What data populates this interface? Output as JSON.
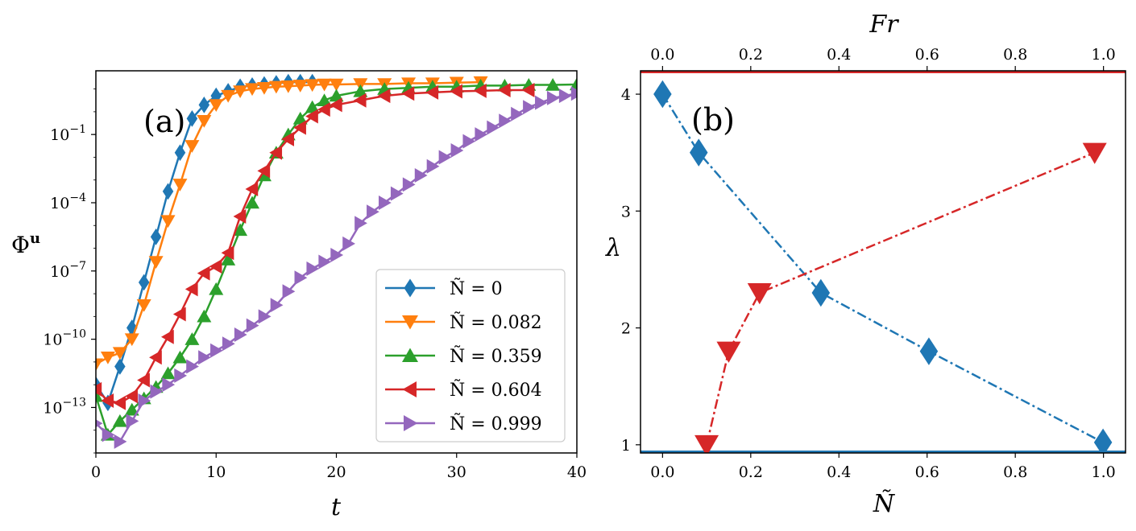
{
  "chart_data": [
    {
      "type": "line",
      "panel_label": "(a)",
      "xlabel": "t",
      "ylabel": "Φ",
      "ylabel_sup": "u",
      "xlim": [
        0,
        40
      ],
      "ylim_log10": [
        -15,
        1.8
      ],
      "yscale": "log",
      "xticks": [
        "0",
        "10",
        "20",
        "30",
        "40"
      ],
      "yticks": [
        {
          "base": "10",
          "exp": "−1",
          "log10": -1
        },
        {
          "base": "10",
          "exp": "−4",
          "log10": -4
        },
        {
          "base": "10",
          "exp": "−7",
          "log10": -7
        },
        {
          "base": "10",
          "exp": "−10",
          "log10": -10
        },
        {
          "base": "10",
          "exp": "−13",
          "log10": -13
        }
      ],
      "legend_position": "lower-right",
      "series": [
        {
          "name": "Ñ = 0",
          "color": "#1f77b4",
          "marker": "diamond",
          "points": [
            [
              0,
              -12
            ],
            [
              1,
              -12.8
            ],
            [
              2,
              -11.2
            ],
            [
              3,
              -9.5
            ],
            [
              4,
              -7.5
            ],
            [
              5,
              -5.5
            ],
            [
              6,
              -3.5
            ],
            [
              7,
              -1.8
            ],
            [
              8,
              -0.3
            ],
            [
              9,
              0.3
            ],
            [
              10,
              0.7
            ],
            [
              11,
              0.9
            ],
            [
              12,
              1.1
            ],
            [
              13,
              1.15
            ],
            [
              14,
              1.2
            ],
            [
              15,
              1.25
            ],
            [
              16,
              1.3
            ],
            [
              17,
              1.3
            ],
            [
              18,
              1.3
            ]
          ],
          "label": "Ñ = 0"
        },
        {
          "name": "Ñ = 0.082",
          "color": "#ff7f0e",
          "marker": "triangle-down",
          "points": [
            [
              0,
              -11.1
            ],
            [
              1,
              -10.8
            ],
            [
              2,
              -10.6
            ],
            [
              3,
              -10
            ],
            [
              4,
              -8.5
            ],
            [
              5,
              -6.6
            ],
            [
              6,
              -4.8
            ],
            [
              7,
              -3.2
            ],
            [
              8,
              -1.5
            ],
            [
              9,
              -0.4
            ],
            [
              10,
              0.3
            ],
            [
              11,
              0.7
            ],
            [
              12,
              0.9
            ],
            [
              13,
              1.0
            ],
            [
              14,
              1.05
            ],
            [
              15,
              1.1
            ],
            [
              16,
              1.12
            ],
            [
              17,
              1.15
            ],
            [
              18,
              1.18
            ],
            [
              19,
              1.2
            ],
            [
              20,
              1.2
            ],
            [
              22,
              1.22
            ],
            [
              24,
              1.22
            ],
            [
              26,
              1.25
            ],
            [
              28,
              1.25
            ],
            [
              30,
              1.28
            ],
            [
              32,
              1.3
            ]
          ],
          "label": "Ñ = 0.082"
        },
        {
          "name": "Ñ = 0.359",
          "color": "#2ca02c",
          "marker": "triangle-up",
          "points": [
            [
              0,
              -12.5
            ],
            [
              1,
              -14.2
            ],
            [
              2,
              -13.6
            ],
            [
              3,
              -13.1
            ],
            [
              4,
              -12.6
            ],
            [
              5,
              -12.1
            ],
            [
              6,
              -11.5
            ],
            [
              7,
              -10.8
            ],
            [
              8,
              -10
            ],
            [
              9,
              -9
            ],
            [
              10,
              -7.8
            ],
            [
              11,
              -6.5
            ],
            [
              12,
              -5.2
            ],
            [
              13,
              -4
            ],
            [
              14,
              -2.8
            ],
            [
              15,
              -1.8
            ],
            [
              16,
              -1
            ],
            [
              17,
              -0.3
            ],
            [
              18,
              0.2
            ],
            [
              19,
              0.5
            ],
            [
              20,
              0.7
            ],
            [
              22,
              0.9
            ],
            [
              24,
              1.0
            ],
            [
              26,
              1.05
            ],
            [
              28,
              1.1
            ],
            [
              30,
              1.1
            ],
            [
              32,
              1.15
            ],
            [
              34,
              1.15
            ],
            [
              36,
              1.18
            ],
            [
              38,
              1.18
            ],
            [
              40,
              1.2
            ]
          ],
          "label": "Ñ = 0.359"
        },
        {
          "name": "Ñ = 0.604",
          "color": "#d62728",
          "marker": "triangle-left",
          "points": [
            [
              0,
              -12.2
            ],
            [
              1,
              -12.7
            ],
            [
              2,
              -12.8
            ],
            [
              3,
              -12.5
            ],
            [
              4,
              -11.8
            ],
            [
              5,
              -10.8
            ],
            [
              6,
              -9.9
            ],
            [
              7,
              -8.9
            ],
            [
              8,
              -7.8
            ],
            [
              9,
              -7.1
            ],
            [
              10,
              -6.8
            ],
            [
              11,
              -6.2
            ],
            [
              12,
              -4.6
            ],
            [
              13,
              -3.4
            ],
            [
              14,
              -2.6
            ],
            [
              15,
              -1.8
            ],
            [
              16,
              -1.2
            ],
            [
              17,
              -0.7
            ],
            [
              18,
              -0.2
            ],
            [
              19,
              0.1
            ],
            [
              20,
              0.3
            ],
            [
              22,
              0.5
            ],
            [
              24,
              0.7
            ],
            [
              26,
              0.8
            ],
            [
              28,
              0.85
            ],
            [
              30,
              0.9
            ],
            [
              32,
              0.92
            ],
            [
              34,
              0.95
            ],
            [
              36,
              0.95
            ]
          ],
          "label": "Ñ = 0.604"
        },
        {
          "name": "Ñ = 0.999",
          "color": "#9467bd",
          "marker": "triangle-right",
          "points": [
            [
              0,
              -13.7
            ],
            [
              1,
              -14.2
            ],
            [
              2,
              -14.5
            ],
            [
              3,
              -13.6
            ],
            [
              4,
              -12.7
            ],
            [
              5,
              -12.3
            ],
            [
              6,
              -12
            ],
            [
              7,
              -11.6
            ],
            [
              8,
              -11.2
            ],
            [
              9,
              -10.8
            ],
            [
              10,
              -10.5
            ],
            [
              11,
              -10.2
            ],
            [
              12,
              -9.8
            ],
            [
              13,
              -9.4
            ],
            [
              14,
              -9
            ],
            [
              15,
              -8.5
            ],
            [
              16,
              -7.9
            ],
            [
              17,
              -7.3
            ],
            [
              18,
              -6.9
            ],
            [
              19,
              -6.6
            ],
            [
              20,
              -6.3
            ],
            [
              21,
              -5.8
            ],
            [
              22,
              -4.9
            ],
            [
              23,
              -4.4
            ],
            [
              24,
              -4
            ],
            [
              25,
              -3.6
            ],
            [
              26,
              -3.2
            ],
            [
              27,
              -2.8
            ],
            [
              28,
              -2.4
            ],
            [
              29,
              -2
            ],
            [
              30,
              -1.7
            ],
            [
              31,
              -1.3
            ],
            [
              32,
              -1.0
            ],
            [
              33,
              -0.7
            ],
            [
              34,
              -0.4
            ],
            [
              35,
              -0.1
            ],
            [
              36,
              0.2
            ],
            [
              37,
              0.4
            ],
            [
              38,
              0.6
            ],
            [
              39,
              0.7
            ],
            [
              40,
              0.8
            ]
          ],
          "label": "Ñ = 0.999"
        }
      ]
    },
    {
      "type": "line",
      "panel_label": "(b)",
      "xlabel": "Ñ",
      "ylabel": "λ",
      "x2label": "Fr",
      "xlim": [
        -0.05,
        1.05
      ],
      "ylim": [
        0.93,
        4.2
      ],
      "xticks": [
        "0.0",
        "0.2",
        "0.4",
        "0.6",
        "0.8",
        "1.0"
      ],
      "x2ticks": [
        "0.0",
        "0.2",
        "0.4",
        "0.6",
        "0.8",
        "1.0"
      ],
      "yticks": [
        "1",
        "2",
        "3",
        "4"
      ],
      "series": [
        {
          "name": "",
          "axis": "bottom",
          "color": "#1f77b4",
          "marker": "diamond",
          "x": [
            0.0,
            0.082,
            0.359,
            0.604,
            0.999
          ],
          "y": [
            4.0,
            3.5,
            2.3,
            1.8,
            1.02
          ]
        },
        {
          "name": "",
          "axis": "top",
          "color": "#d62728",
          "marker": "triangle-down",
          "x": [
            0.1,
            0.15,
            0.22,
            0.98
          ],
          "y": [
            1.0,
            1.8,
            2.3,
            3.5
          ]
        }
      ],
      "reference_lines": [
        {
          "color": "#d62728",
          "y": 4.2
        },
        {
          "color": "#1f77b4",
          "y": 0.93
        }
      ]
    }
  ]
}
